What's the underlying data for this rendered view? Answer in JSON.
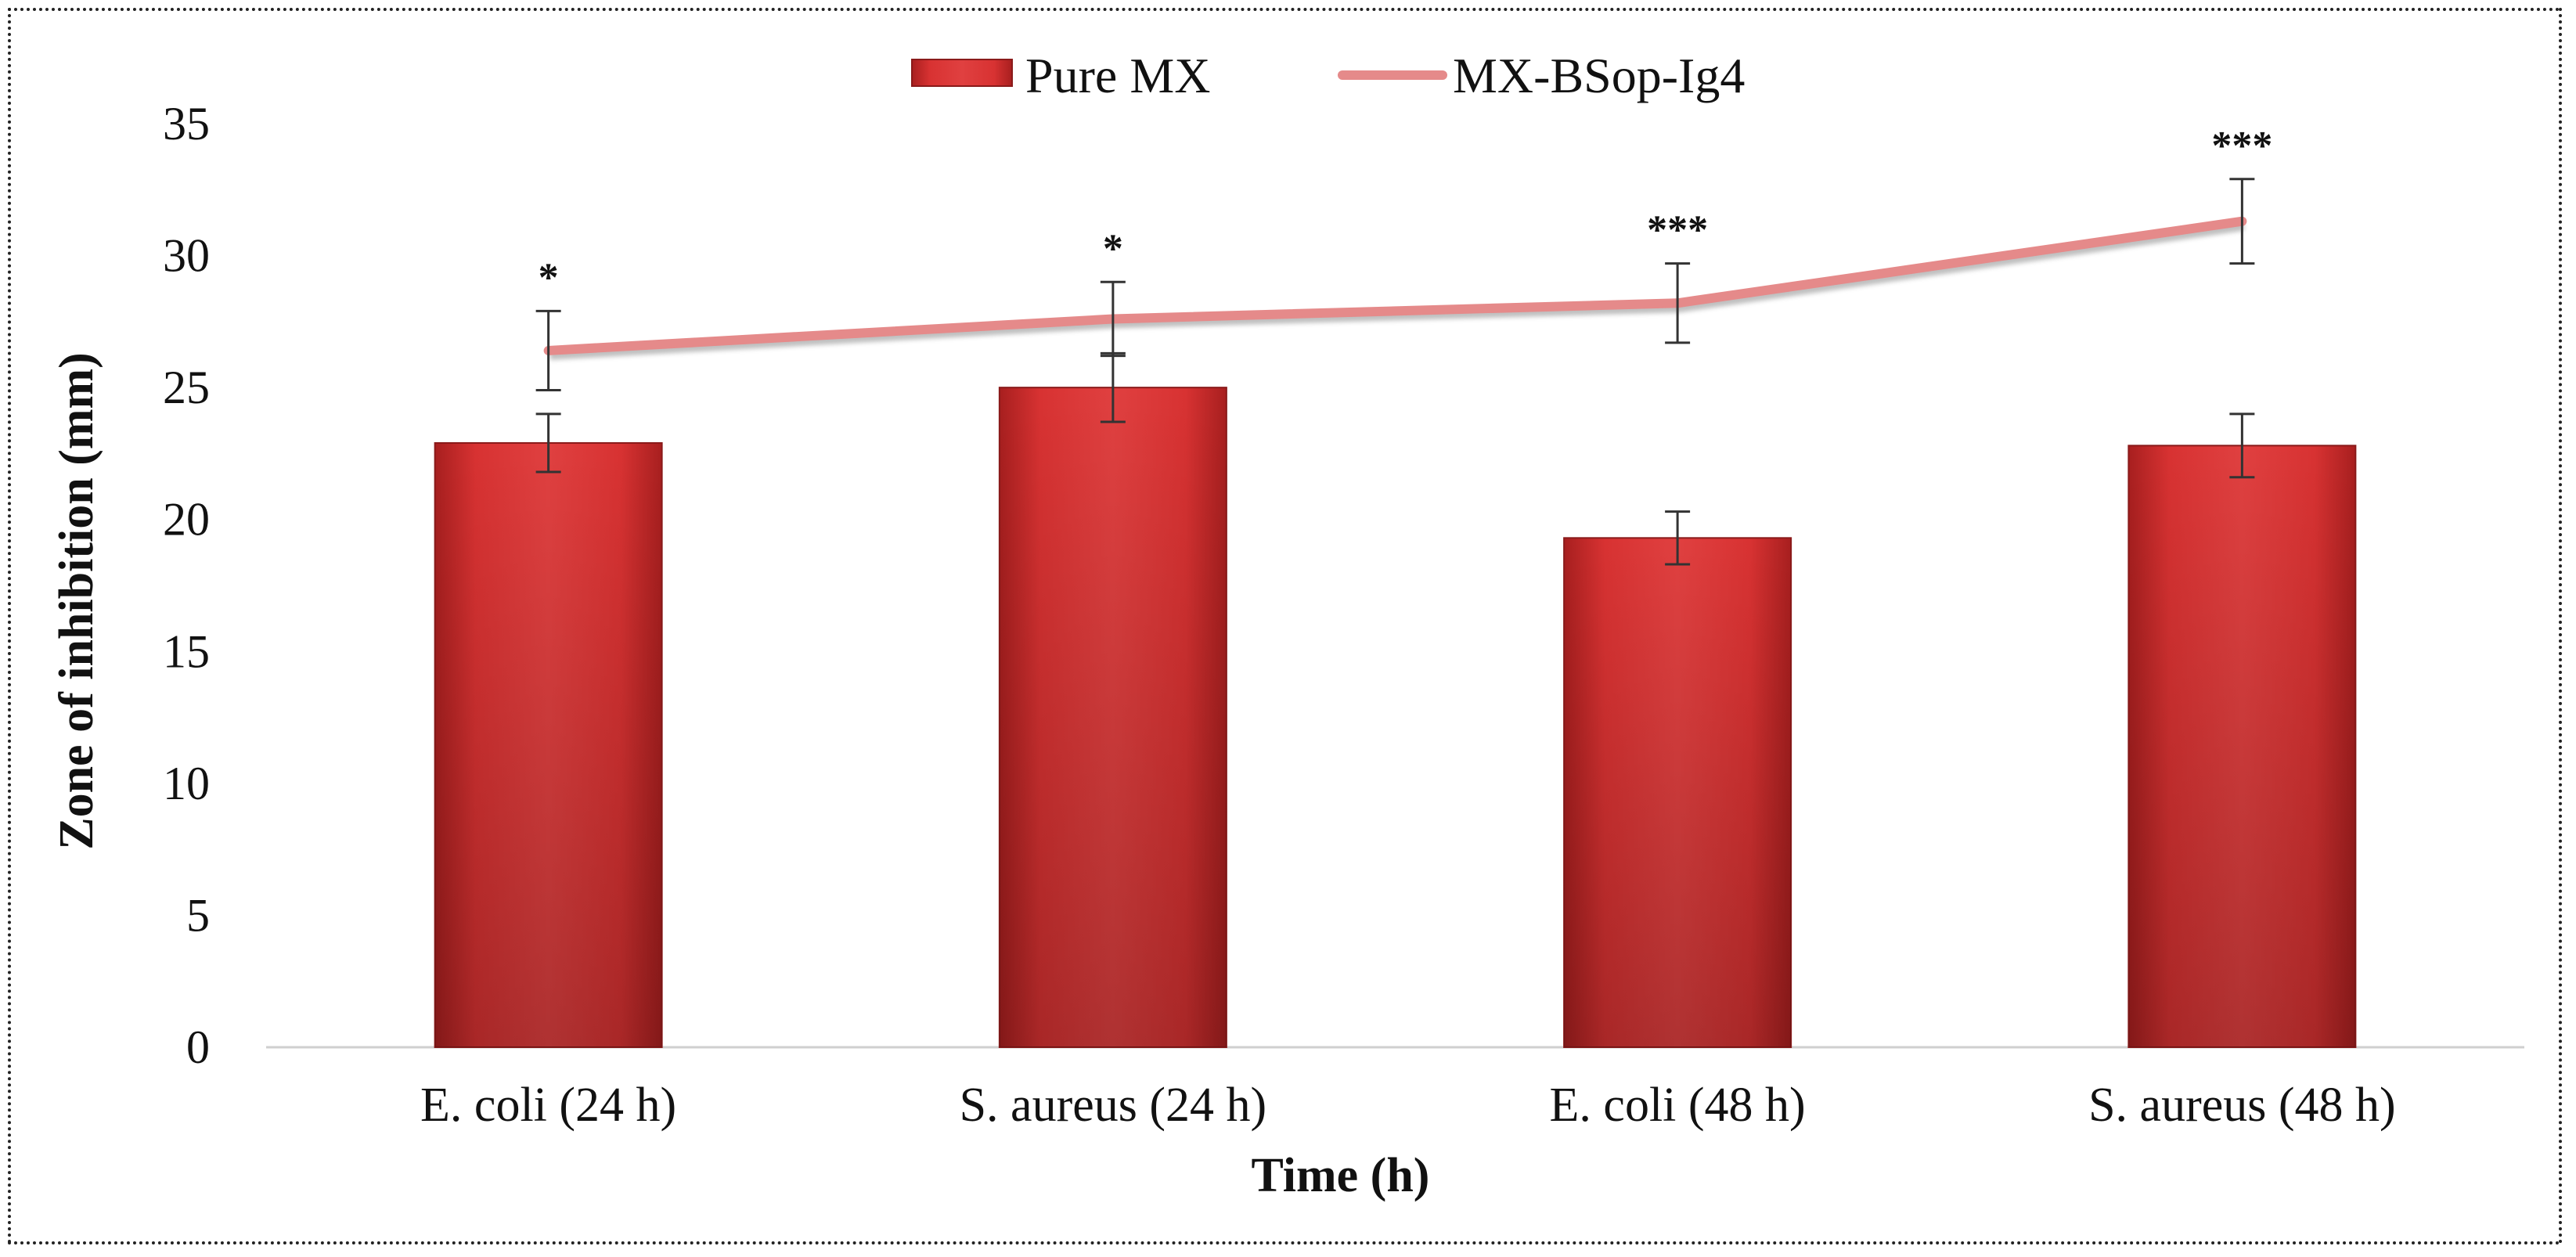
{
  "chart_data": {
    "type": "bar",
    "title": "",
    "xlabel": "Time (h)",
    "ylabel": "Zone of inhibition (mm)",
    "ylim": [
      0,
      35
    ],
    "yticks": [
      0,
      5,
      10,
      15,
      20,
      25,
      30,
      35
    ],
    "grid": false,
    "legend_position": "top-center",
    "categories": [
      "E. coli (24 h)",
      "S. aureus (24 h)",
      "E. coli (48 h)",
      "S. aureus (48 h)"
    ],
    "series": [
      {
        "name": "Pure MX",
        "kind": "bar",
        "color": "#d93434",
        "values": [
          22.9,
          25.0,
          19.3,
          22.8
        ],
        "errors": [
          1.1,
          1.3,
          1.0,
          1.2
        ]
      },
      {
        "name": "MX-BSop-Ig4",
        "kind": "line",
        "color": "#e58a8a",
        "values": [
          26.4,
          27.6,
          28.2,
          31.3
        ],
        "errors": [
          1.5,
          1.4,
          1.5,
          1.6
        ],
        "significance": [
          "*",
          "*",
          "***",
          "***"
        ]
      }
    ]
  }
}
